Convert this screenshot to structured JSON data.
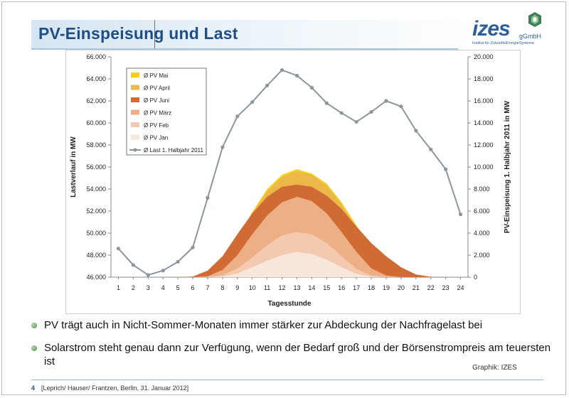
{
  "slide": {
    "title": "PV-Einspeisung und Last",
    "logo": {
      "name": "izes",
      "suffix": "gGmbH",
      "subtitle": "Institut für ZukunftsEnergieSysteme"
    },
    "bullets": [
      "PV trägt auch in Nicht-Sommer-Monaten immer stärker zur Abdeckung der Nachfragelast bei",
      "Solarstrom steht genau dann zur Verfügung, wenn der Bedarf groß und der Börsenstrompreis am teuersten ist"
    ],
    "credit": "Graphik: IZES",
    "footer": {
      "page": "4",
      "text": "[Leprich/ Hauser/ Frantzen, Berlin, 31. Januar 2012]"
    }
  },
  "chart_data": {
    "type": "area",
    "title": "",
    "xlabel": "Tagesstunde",
    "ylabel_left": "Lastverlauf in MW",
    "ylabel_right": "PV-Einspeisung 1. Halbjahr 2011 in MW",
    "x": [
      1,
      2,
      3,
      4,
      5,
      6,
      7,
      8,
      9,
      10,
      11,
      12,
      13,
      14,
      15,
      16,
      17,
      18,
      19,
      20,
      21,
      22,
      23,
      24
    ],
    "x_tick_labels": [
      "1",
      "2",
      "3",
      "4",
      "5",
      "6",
      "7",
      "8",
      "9",
      "10",
      "11",
      "12",
      "13",
      "14",
      "15",
      "16",
      "17",
      "18",
      "19",
      "20",
      "21",
      "22",
      "23",
      "24"
    ],
    "ylim_left": [
      46000,
      66000
    ],
    "ylim_right": [
      0,
      20000
    ],
    "left_tick_labels": [
      "46.000",
      "48.000",
      "50.000",
      "52.000",
      "54.000",
      "56.000",
      "58.000",
      "60.000",
      "62.000",
      "64.000",
      "66.000"
    ],
    "right_tick_labels": [
      "0",
      "2.000",
      "4.000",
      "6.000",
      "8.000",
      "10.000",
      "12.000",
      "14.000",
      "16.000",
      "18.000",
      "20.000"
    ],
    "grid": false,
    "legend_position": "top-left",
    "area_series": [
      {
        "name": "Ø PV Mai",
        "color": "#f5cf1f",
        "values": [
          0,
          0,
          0,
          0,
          0,
          20,
          300,
          1300,
          3500,
          5900,
          8000,
          9300,
          9800,
          9400,
          8500,
          6800,
          4700,
          2600,
          900,
          250,
          40,
          0,
          0,
          0
        ]
      },
      {
        "name": "Ø PV April",
        "color": "#ecb84a",
        "values": [
          0,
          0,
          0,
          0,
          0,
          10,
          250,
          1200,
          3300,
          5700,
          7800,
          9100,
          9600,
          9300,
          8300,
          6600,
          4400,
          2300,
          700,
          150,
          20,
          0,
          0,
          0
        ]
      },
      {
        "name": "Ø PV Juni",
        "color": "#d06b35",
        "values": [
          0,
          0,
          0,
          0,
          0,
          60,
          600,
          1900,
          3900,
          5800,
          7300,
          8200,
          8400,
          8200,
          7400,
          6200,
          4600,
          3100,
          1900,
          900,
          250,
          30,
          0,
          0
        ]
      },
      {
        "name": "Ø PV März",
        "color": "#ecaf86",
        "values": [
          0,
          0,
          0,
          0,
          0,
          0,
          90,
          650,
          2000,
          3900,
          5600,
          6800,
          7300,
          6900,
          5800,
          4100,
          2300,
          800,
          150,
          10,
          0,
          0,
          0,
          0
        ]
      },
      {
        "name": "Ø PV Feb",
        "color": "#f3c9b0",
        "values": [
          0,
          0,
          0,
          0,
          0,
          0,
          10,
          180,
          800,
          1800,
          2900,
          3800,
          4100,
          3900,
          3100,
          1900,
          750,
          150,
          10,
          0,
          0,
          0,
          0,
          0
        ]
      },
      {
        "name": "Ø PV Jan",
        "color": "#f8e6db",
        "values": [
          0,
          0,
          0,
          0,
          0,
          0,
          0,
          60,
          350,
          900,
          1500,
          2000,
          2300,
          2100,
          1600,
          900,
          300,
          50,
          0,
          0,
          0,
          0,
          0,
          0
        ]
      }
    ],
    "line_series": {
      "name": "Ø Last 1. Halbjahr 2011",
      "color": "#8e959e",
      "values": [
        48600,
        47100,
        46200,
        46600,
        47400,
        48700,
        53200,
        57800,
        60600,
        61900,
        63400,
        64800,
        64300,
        63200,
        61800,
        60900,
        60100,
        61000,
        62000,
        61500,
        59300,
        57600,
        55800,
        51700
      ]
    }
  }
}
